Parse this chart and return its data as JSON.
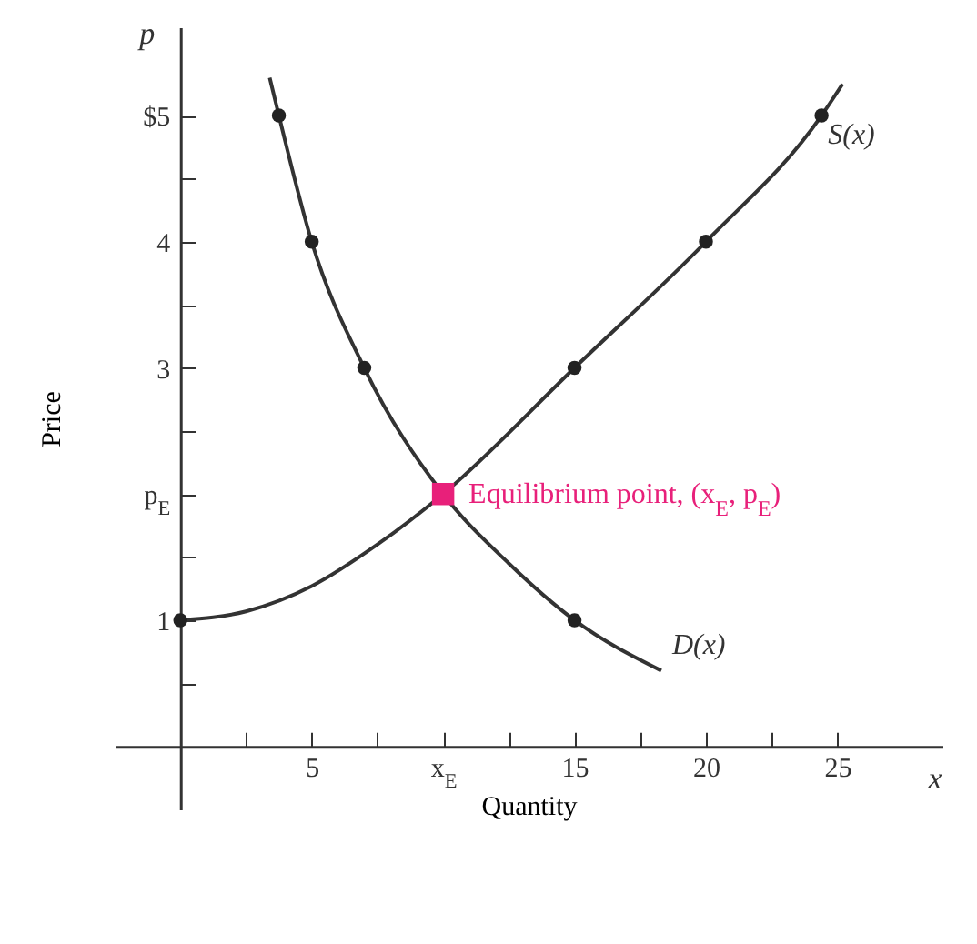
{
  "chart_data": {
    "type": "line",
    "xlabel": "Quantity",
    "ylabel": "Price",
    "xlim": [
      -2.5,
      29
    ],
    "ylim": [
      -0.5,
      5.7
    ],
    "xticks": [
      {
        "value": 2.5,
        "label": null
      },
      5,
      {
        "value": 7.5,
        "label": null
      },
      {
        "value": 10,
        "label": "x$_{E}$"
      },
      {
        "value": 12.5,
        "label": null
      },
      15,
      {
        "value": 17.5,
        "label": null
      },
      20,
      {
        "value": 22.5,
        "label": null
      },
      25
    ],
    "yticks": [
      {
        "value": 0.5,
        "label": null
      },
      1,
      {
        "value": 1.5,
        "label": null
      },
      {
        "value": 2,
        "label": "p$_{E}$"
      },
      {
        "value": 2.5,
        "label": null
      },
      3,
      {
        "value": 3.5,
        "label": null
      },
      4,
      {
        "value": 4.5,
        "label": null
      },
      {
        "value": 5,
        "label": "$5"
      }
    ],
    "grid": false,
    "series": [
      {
        "name": "D(x)",
        "color": "#333333",
        "marker": "none",
        "x": [
          3.4,
          3.75,
          5,
          7,
          10,
          12.5,
          15,
          18.3
        ],
        "values": [
          5.3,
          5,
          4,
          3,
          2,
          1.45,
          1,
          0.6
        ]
      },
      {
        "name": "S(x)",
        "color": "#333333",
        "marker": "none",
        "x": [
          0,
          2.5,
          5,
          7.5,
          10,
          15,
          20,
          24.4,
          25.2
        ],
        "values": [
          1,
          1.07,
          1.27,
          1.6,
          2,
          3,
          4,
          5,
          5.25
        ]
      },
      {
        "type": "scatter",
        "color": "#222222",
        "marker": "circle",
        "x": [
          3.75,
          5,
          7,
          15,
          0,
          15,
          20,
          24.4
        ],
        "values": [
          5,
          4,
          3,
          1,
          1,
          3,
          4,
          5
        ]
      },
      {
        "type": "scatter",
        "color": "#e8207a",
        "marker": "square",
        "x": [
          10
        ],
        "values": [
          2
        ]
      }
    ],
    "annotations": [
      "p",
      "x",
      {
        "text": "Equilibrium point, (x$_{E}$, p$_{E}$)",
        "x": 10,
        "y": 2
      }
    ]
  }
}
